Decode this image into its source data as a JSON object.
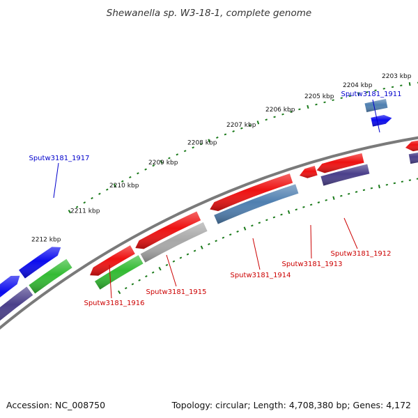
{
  "title": "Shewanella sp. W3-18-1, complete genome",
  "footer": {
    "accession": "Accession: NC_008750",
    "summary": "Topology: circular; Length: 4,708,380 bp; Genes: 4,172"
  },
  "kbp_labels": [
    "2212 kbp",
    "2211 kbp",
    "2210 kbp",
    "2209 kbp",
    "2208 kbp",
    "2207 kbp",
    "2206 kbp",
    "2205 kbp",
    "2204 kbp",
    "2203 kbp"
  ],
  "gene_labels": [
    {
      "id": "g1917",
      "text": "Sputw3181_1917",
      "color": "#0000cc"
    },
    {
      "id": "g1911",
      "text": "Sputw3181_1911",
      "color": "#0000cc"
    },
    {
      "id": "g1916",
      "text": "Sputw3181_1916",
      "color": "#cc0000"
    },
    {
      "id": "g1915",
      "text": "Sputw3181_1915",
      "color": "#cc0000"
    },
    {
      "id": "g1914",
      "text": "Sputw3181_1914",
      "color": "#cc0000"
    },
    {
      "id": "g1913",
      "text": "Sputw3181_1913",
      "color": "#cc0000"
    },
    {
      "id": "g1912",
      "text": "Sputw3181_1912",
      "color": "#cc0000"
    }
  ],
  "colors": {
    "backbone": "#7a7a7a",
    "ticks": "#1a7a1a",
    "cds_red": "#ee1111",
    "cog_purple": "#4a3f8a",
    "cog_green": "#33bb33",
    "cog_blue": "#0b0bee",
    "cog_steel": "#4f7fb0",
    "cog_gray": "#a8a8a8"
  }
}
